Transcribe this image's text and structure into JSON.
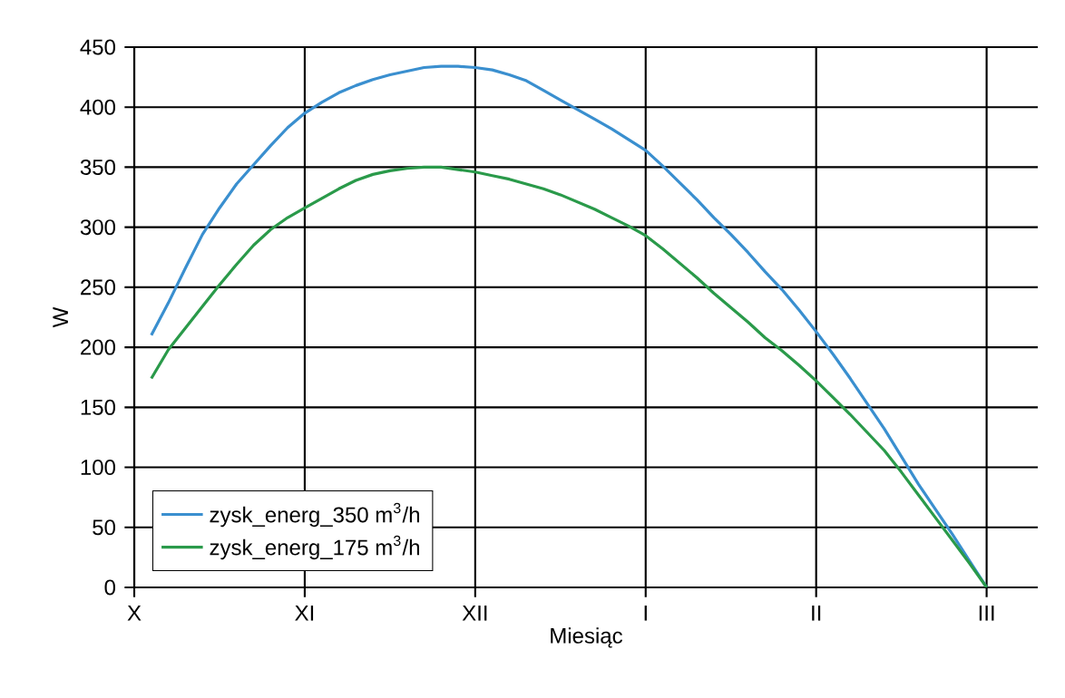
{
  "chart_data": {
    "type": "line",
    "xlabel": "Miesiąc",
    "ylabel": "W",
    "categories": [
      "X",
      null,
      null,
      null,
      null,
      null,
      null,
      null,
      null,
      null,
      "XI",
      null,
      null,
      null,
      null,
      null,
      null,
      null,
      null,
      null,
      "XII",
      null,
      null,
      null,
      null,
      null,
      null,
      null,
      null,
      null,
      "I",
      null,
      null,
      null,
      null,
      null,
      null,
      null,
      null,
      null,
      "II",
      null,
      null,
      null,
      null,
      null,
      null,
      null,
      null,
      null,
      "III"
    ],
    "ylim": [
      0,
      450
    ],
    "yticks": [
      0,
      50,
      100,
      150,
      200,
      250,
      300,
      350,
      400,
      450
    ],
    "grid": true,
    "legend": "bottom left",
    "marker": "none",
    "line_style": "solid",
    "series": [
      {
        "name": "zysk_energ_350 m$^{3}$/h",
        "color": "#3a8fcf",
        "values": [
          null,
          210,
          237,
          266,
          294,
          316,
          336,
          352,
          368,
          383,
          395,
          404,
          412,
          418,
          423,
          427,
          430,
          433,
          434,
          434,
          433,
          431,
          427,
          422,
          414,
          406,
          398,
          390,
          382,
          373,
          364,
          351,
          337,
          323,
          308,
          294,
          279,
          263,
          248,
          231,
          213,
          194,
          174,
          153,
          132,
          109,
          86,
          65,
          44,
          22,
          0
        ]
      },
      {
        "name": "zysk_energ_175 m$^{3}$/h",
        "color": "#2a9a4a",
        "values": [
          null,
          174,
          198,
          216,
          234,
          252,
          269,
          285,
          298,
          308,
          316,
          324,
          332,
          339,
          344,
          347,
          349,
          350,
          350,
          348,
          346,
          343,
          340,
          336,
          332,
          327,
          321,
          315,
          308,
          301,
          293,
          282,
          270,
          258,
          245,
          233,
          221,
          208,
          197,
          185,
          172,
          158,
          144,
          129,
          114,
          96,
          77,
          58,
          39,
          20,
          0
        ]
      }
    ]
  }
}
